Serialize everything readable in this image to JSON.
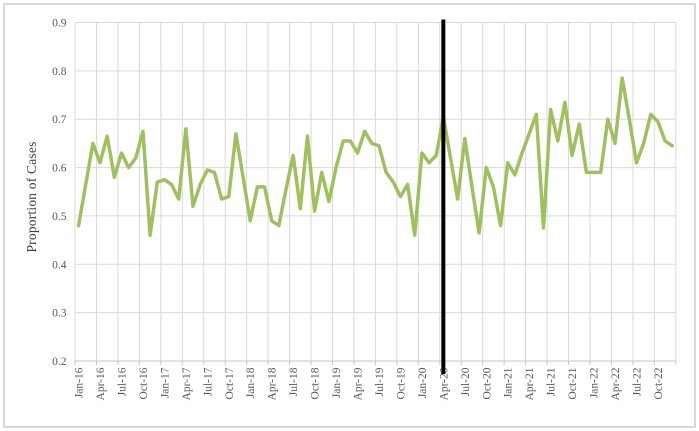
{
  "chart_data": {
    "type": "line",
    "title": "",
    "xlabel": "",
    "ylabel": "Proportion of Cases",
    "ylim": [
      0.2,
      0.9
    ],
    "ytick_step": 0.1,
    "y_tick_labels": [
      "0.2",
      "0.3",
      "0.4",
      "0.5",
      "0.6",
      "0.7",
      "0.8",
      "0.9"
    ],
    "x_tick_interval_months": 3,
    "grid": true,
    "legend_position": "none",
    "x": [
      "Jan-16",
      "Feb-16",
      "Mar-16",
      "Apr-16",
      "May-16",
      "Jun-16",
      "Jul-16",
      "Aug-16",
      "Sep-16",
      "Oct-16",
      "Nov-16",
      "Dec-16",
      "Jan-17",
      "Feb-17",
      "Mar-17",
      "Apr-17",
      "May-17",
      "Jun-17",
      "Jul-17",
      "Aug-17",
      "Sep-17",
      "Oct-17",
      "Nov-17",
      "Dec-17",
      "Jan-18",
      "Feb-18",
      "Mar-18",
      "Apr-18",
      "May-18",
      "Jun-18",
      "Jul-18",
      "Aug-18",
      "Sep-18",
      "Oct-18",
      "Nov-18",
      "Dec-18",
      "Jan-19",
      "Feb-19",
      "Mar-19",
      "Apr-19",
      "May-19",
      "Jun-19",
      "Jul-19",
      "Aug-19",
      "Sep-19",
      "Oct-19",
      "Nov-19",
      "Dec-19",
      "Jan-20",
      "Feb-20",
      "Mar-20",
      "Apr-20",
      "May-20",
      "Jun-20",
      "Jul-20",
      "Aug-20",
      "Sep-20",
      "Oct-20",
      "Nov-20",
      "Dec-20",
      "Jan-21",
      "Feb-21",
      "Mar-21",
      "Apr-21",
      "May-21",
      "Jun-21",
      "Jul-21",
      "Aug-21",
      "Sep-21",
      "Oct-21",
      "Nov-21",
      "Dec-21",
      "Jan-22",
      "Feb-22",
      "Mar-22",
      "Apr-22",
      "May-22",
      "Jun-22",
      "Jul-22",
      "Aug-22",
      "Sep-22",
      "Oct-22",
      "Nov-22",
      "Dec-22"
    ],
    "series": [
      {
        "name": "Proportion of Cases",
        "color": "#A0C060",
        "values": [
          0.48,
          0.565,
          0.65,
          0.61,
          0.665,
          0.58,
          0.63,
          0.6,
          0.62,
          0.675,
          0.46,
          0.57,
          0.575,
          0.565,
          0.535,
          0.68,
          0.52,
          0.565,
          0.595,
          0.59,
          0.535,
          0.54,
          0.67,
          0.58,
          0.49,
          0.56,
          0.56,
          0.49,
          0.48,
          0.555,
          0.625,
          0.515,
          0.665,
          0.51,
          0.59,
          0.53,
          0.6,
          0.655,
          0.655,
          0.63,
          0.675,
          0.65,
          0.645,
          0.59,
          0.57,
          0.54,
          0.565,
          0.46,
          0.63,
          0.61,
          0.625,
          0.705,
          0.62,
          0.535,
          0.66,
          0.56,
          0.465,
          0.6,
          0.56,
          0.48,
          0.61,
          0.585,
          0.63,
          0.67,
          0.71,
          0.475,
          0.72,
          0.655,
          0.735,
          0.625,
          0.69,
          0.59,
          0.59,
          0.59,
          0.7,
          0.65,
          0.785,
          0.7,
          0.61,
          0.65,
          0.71,
          0.695,
          0.655,
          0.645
        ]
      }
    ],
    "annotations": [
      {
        "type": "vertical-line",
        "at": "Apr-20",
        "color": "#000000"
      }
    ],
    "colors": {
      "gridline": "#D9D9D9",
      "axis_line": "#C6C6C6",
      "tick_text": "#595959",
      "axis_title_text": "#404040",
      "frame_border": "#D9D9D9",
      "background": "#FFFFFF"
    }
  }
}
